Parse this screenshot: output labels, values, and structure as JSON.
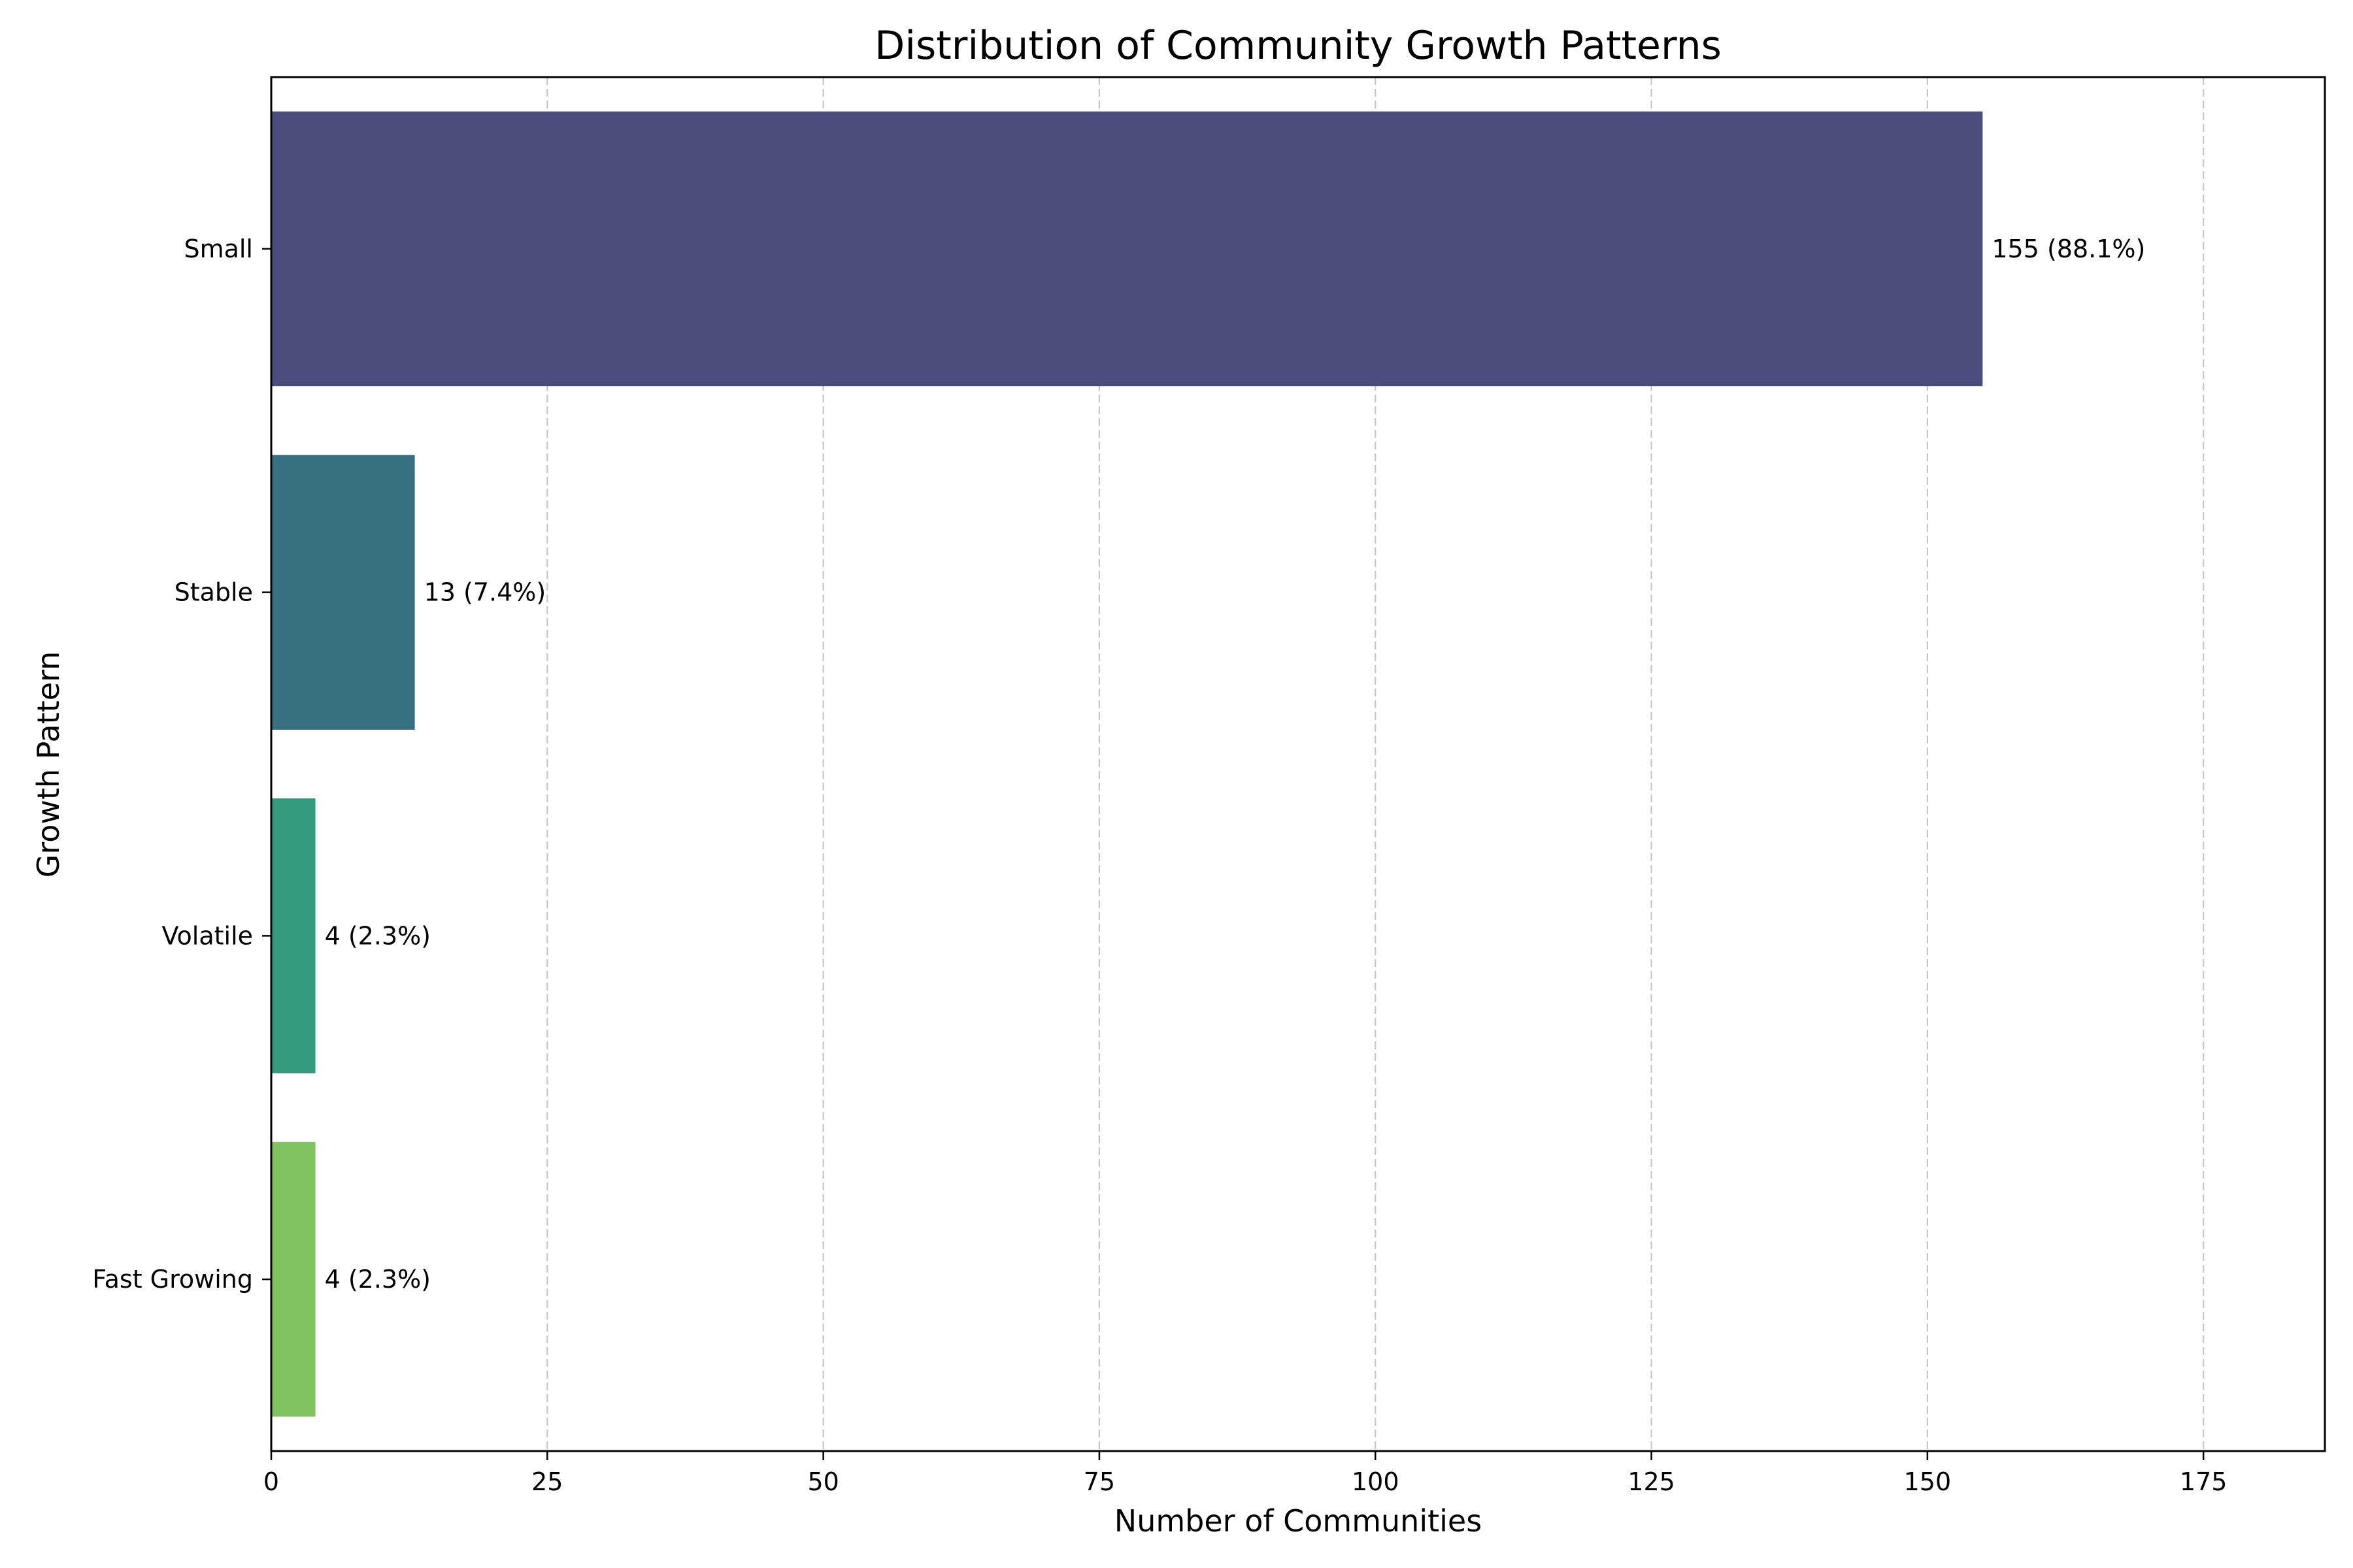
{
  "chart_data": {
    "type": "bar",
    "orientation": "horizontal",
    "title": "Distribution of Community Growth Patterns",
    "xlabel": "Number of Communities",
    "ylabel": "Growth Pattern",
    "categories": [
      "Small",
      "Stable",
      "Volatile",
      "Fast Growing"
    ],
    "values": [
      155,
      13,
      4,
      4
    ],
    "data_labels": [
      "155 (88.1%)",
      "13 (7.4%)",
      "4 (2.3%)",
      "4 (2.3%)"
    ],
    "colors": [
      "#4a4e7c",
      "#37717f",
      "#339a7e",
      "#82c361"
    ],
    "xlim": [
      0,
      186
    ],
    "xticks": [
      0,
      25,
      50,
      75,
      100,
      125,
      150,
      175
    ],
    "grid": "x, dashed",
    "legend": "none"
  }
}
